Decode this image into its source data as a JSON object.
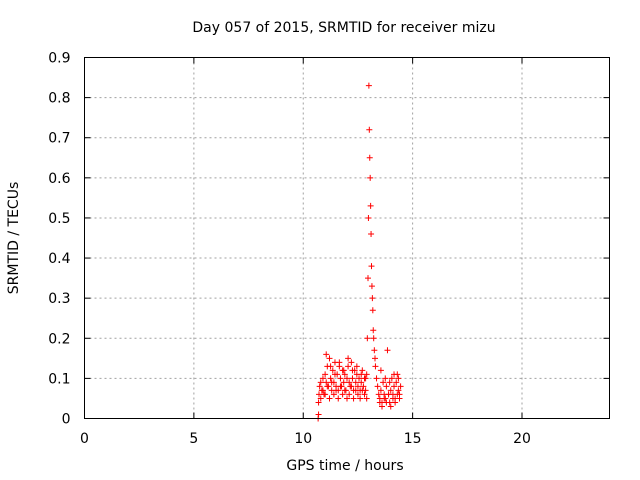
{
  "chart_data": {
    "type": "scatter",
    "title": "Day 057 of 2015, SRMTID for receiver mizu",
    "xlabel": "GPS time / hours",
    "ylabel": "SRMTID / TECUs",
    "xlim": [
      0,
      24
    ],
    "ylim": [
      0,
      0.9
    ],
    "xticks": [
      0,
      5,
      10,
      15,
      20
    ],
    "xtick_labels": [
      "0",
      "5",
      "10",
      "15",
      "20"
    ],
    "yticks": [
      0,
      0.1,
      0.2,
      0.3,
      0.4,
      0.5,
      0.6,
      0.7,
      0.8,
      0.9
    ],
    "ytick_labels": [
      "0",
      "0.1",
      "0.2",
      "0.3",
      "0.4",
      "0.5",
      "0.6",
      "0.7",
      "0.8",
      "0.9"
    ],
    "grid": true,
    "marker": "+",
    "marker_color": "#ff0000",
    "series": [
      {
        "name": "SRMTID",
        "x": [
          10.72,
          10.75,
          10.8,
          10.85,
          10.9,
          10.95,
          11.0,
          11.05,
          11.1,
          11.15,
          11.2,
          11.25,
          11.3,
          11.35,
          11.4,
          11.45,
          11.5,
          11.55,
          11.6,
          11.65,
          11.7,
          11.75,
          11.8,
          11.85,
          11.9,
          11.95,
          12.0,
          12.05,
          12.1,
          12.15,
          12.2,
          12.25,
          12.3,
          12.35,
          12.4,
          12.45,
          12.5,
          12.55,
          12.6,
          12.65,
          12.7,
          12.75,
          12.8,
          12.85,
          12.9,
          12.93,
          12.96,
          12.98,
          13.0,
          13.02,
          13.04,
          13.06,
          13.08,
          13.1,
          13.12,
          13.14,
          13.16,
          13.18,
          13.2,
          13.22,
          13.25,
          13.28,
          13.3,
          13.35,
          13.4,
          13.45,
          13.5,
          13.55,
          13.6,
          13.65,
          13.7,
          13.75,
          13.8,
          13.85,
          13.9,
          13.95,
          14.0,
          14.05,
          14.1,
          14.15,
          14.2,
          14.25,
          14.3,
          14.35,
          14.4,
          14.45,
          10.7,
          10.8,
          10.9,
          11.0,
          11.1,
          11.2,
          11.3,
          11.4,
          11.5,
          11.6,
          11.7,
          11.8,
          11.9,
          12.0,
          12.1,
          12.2,
          12.3,
          12.4,
          12.5,
          12.6,
          12.7,
          12.8,
          12.9,
          13.5,
          13.6,
          13.7,
          13.8,
          13.9,
          14.0,
          14.1,
          14.2,
          14.3,
          14.4,
          11.05,
          11.25,
          11.45,
          11.65,
          11.85,
          12.05,
          12.25,
          12.45,
          12.65,
          12.85,
          13.55,
          13.75,
          13.95,
          14.15,
          14.35,
          10.68,
          10.7
        ],
        "y": [
          0.06,
          0.08,
          0.09,
          0.07,
          0.1,
          0.06,
          0.11,
          0.09,
          0.13,
          0.08,
          0.15,
          0.1,
          0.07,
          0.12,
          0.09,
          0.14,
          0.08,
          0.11,
          0.07,
          0.13,
          0.1,
          0.08,
          0.12,
          0.09,
          0.11,
          0.07,
          0.1,
          0.13,
          0.09,
          0.08,
          0.14,
          0.1,
          0.07,
          0.12,
          0.09,
          0.11,
          0.08,
          0.1,
          0.07,
          0.09,
          0.12,
          0.08,
          0.1,
          0.07,
          0.11,
          0.2,
          0.35,
          0.5,
          0.83,
          0.72,
          0.65,
          0.6,
          0.53,
          0.46,
          0.38,
          0.33,
          0.3,
          0.27,
          0.22,
          0.2,
          0.17,
          0.15,
          0.13,
          0.1,
          0.08,
          0.06,
          0.05,
          0.07,
          0.04,
          0.09,
          0.06,
          0.05,
          0.08,
          0.17,
          0.06,
          0.04,
          0.07,
          0.1,
          0.06,
          0.08,
          0.05,
          0.09,
          0.11,
          0.07,
          0.06,
          0.08,
          0.04,
          0.05,
          0.07,
          0.06,
          0.08,
          0.05,
          0.09,
          0.06,
          0.07,
          0.05,
          0.08,
          0.06,
          0.07,
          0.05,
          0.06,
          0.08,
          0.05,
          0.07,
          0.06,
          0.05,
          0.07,
          0.06,
          0.05,
          0.04,
          0.03,
          0.05,
          0.04,
          0.06,
          0.03,
          0.05,
          0.04,
          0.06,
          0.05,
          0.16,
          0.13,
          0.11,
          0.14,
          0.12,
          0.15,
          0.12,
          0.13,
          0.11,
          0.1,
          0.12,
          0.1,
          0.09,
          0.11,
          0.1,
          0.0,
          0.01
        ]
      }
    ]
  }
}
